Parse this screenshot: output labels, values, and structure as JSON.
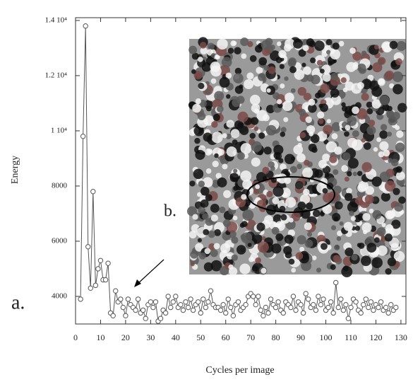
{
  "chart_data": {
    "type": "line",
    "xlabel": "Cycles per image",
    "ylabel": "Energy",
    "annotations": [
      "a.",
      "b."
    ],
    "xlim": [
      0,
      132
    ],
    "ylim": [
      3000,
      14100
    ],
    "xticks": [
      0,
      10,
      20,
      30,
      40,
      50,
      60,
      70,
      80,
      90,
      100,
      110,
      120,
      130
    ],
    "yticks": [
      4000,
      6000,
      8000,
      {
        "value": 10000,
        "label": "1 10⁴"
      },
      {
        "value": 12000,
        "label": "1.2 10⁴"
      },
      {
        "value": 14000,
        "label": "1.4 10⁴"
      }
    ],
    "color": "#555555",
    "x": [
      2,
      3,
      4,
      5,
      6,
      7,
      8,
      9,
      10,
      11,
      12,
      13,
      14,
      15,
      16,
      17,
      18,
      19,
      20,
      21,
      22,
      23,
      24,
      25,
      26,
      27,
      28,
      29,
      30,
      31,
      32,
      33,
      34,
      35,
      36,
      37,
      38,
      39,
      40,
      41,
      42,
      43,
      44,
      45,
      46,
      47,
      48,
      49,
      50,
      51,
      52,
      53,
      54,
      55,
      56,
      57,
      58,
      59,
      60,
      61,
      62,
      63,
      64,
      65,
      66,
      67,
      68,
      69,
      70,
      71,
      72,
      73,
      74,
      75,
      76,
      77,
      78,
      79,
      80,
      81,
      82,
      83,
      84,
      85,
      86,
      87,
      88,
      89,
      90,
      91,
      92,
      93,
      94,
      95,
      96,
      97,
      98,
      99,
      100,
      101,
      102,
      103,
      104,
      105,
      106,
      107,
      108,
      109,
      110,
      111,
      112,
      113,
      114,
      115,
      116,
      117,
      118,
      119,
      120,
      121,
      122,
      123,
      124,
      125,
      126,
      127,
      128
    ],
    "values": [
      3900,
      9800,
      13800,
      5800,
      4300,
      7800,
      4400,
      5000,
      5300,
      4600,
      4600,
      5200,
      3400,
      3300,
      4200,
      3800,
      3900,
      3600,
      3300,
      3900,
      3700,
      3600,
      3500,
      3900,
      3400,
      3500,
      3200,
      3700,
      3800,
      3600,
      3800,
      3100,
      3200,
      3500,
      3400,
      4000,
      3600,
      3800,
      4000,
      3600,
      3700,
      3500,
      3800,
      3600,
      3900,
      3500,
      3700,
      3800,
      3400,
      3900,
      3600,
      3800,
      4200,
      3700,
      3600,
      3600,
      3500,
      3700,
      3400,
      3900,
      3600,
      3300,
      3700,
      3800,
      3500,
      3600,
      3700,
      4000,
      4100,
      4000,
      3700,
      4000,
      3500,
      3300,
      3600,
      3400,
      3900,
      3700,
      3600,
      3800,
      3500,
      3400,
      3800,
      3700,
      3600,
      4000,
      3500,
      3800,
      3700,
      3400,
      4100,
      3900,
      3600,
      3700,
      3500,
      4000,
      3700,
      3900,
      3500,
      3600,
      3800,
      3400,
      4500,
      3600,
      3900,
      3500,
      3700,
      3200,
      3600,
      3900,
      3800,
      3500,
      3400,
      3700,
      3900,
      3600,
      3800,
      3500,
      3700,
      3600,
      3800,
      3500,
      3600,
      3400,
      3700,
      3500,
      3600
    ]
  }
}
